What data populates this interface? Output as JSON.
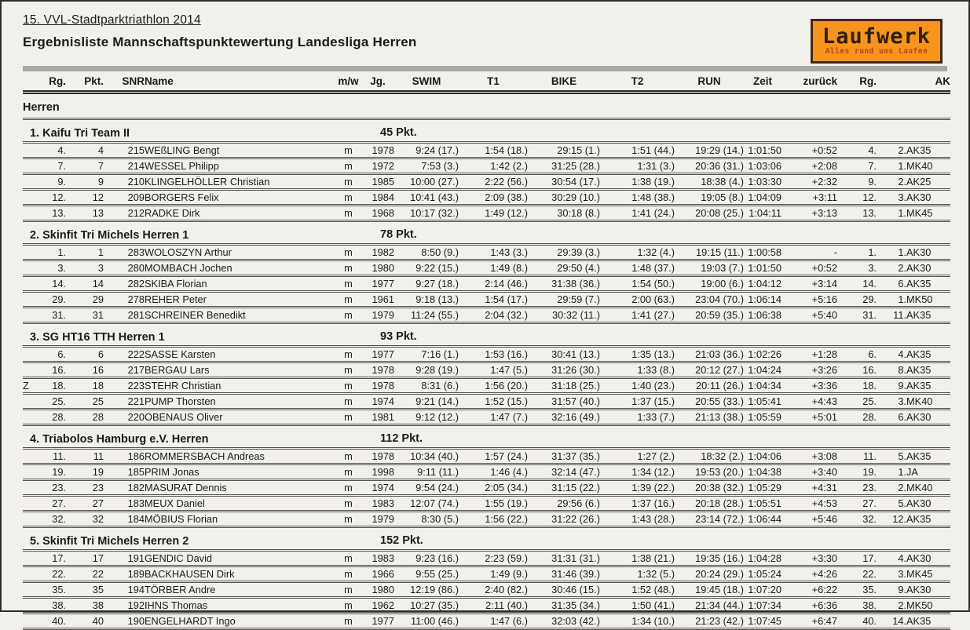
{
  "page": {
    "title": "15. VVL-Stadtparktriathlon 2014",
    "subtitle": "Ergebnisliste Mannschaftspunktewertung Landesliga Herren",
    "section": "Herren"
  },
  "logo": {
    "name": "Laufwerk",
    "tagline": "Alles rund ums Laufen",
    "bg_color": "#f7941e",
    "text_color": "#32200a",
    "tagline_color": "#bf4012"
  },
  "columns": [
    "Rg.",
    "Pkt.",
    "SNR",
    "Name",
    "m/w",
    "Jg.",
    "SWIM",
    "T1",
    "BIKE",
    "T2",
    "RUN",
    "Zeit",
    "zurück",
    "Rg.",
    "AK"
  ],
  "teams": [
    {
      "name": "1. Kaifu Tri Team II",
      "points": "45 Pkt.",
      "rows": [
        {
          "flag": "",
          "rg": "4.",
          "pkt": "4",
          "snr": "215",
          "name": "WEßLING Bengt",
          "mw": "m",
          "jg": "1978",
          "swim": "9:24 (17.)",
          "t1": "1:54 (18.)",
          "bike": "29:15 (1.)",
          "t2": "1:51 (44.)",
          "run": "19:29 (14.)",
          "zeit": "1:01:50",
          "zurueck": "+0:52",
          "rg2": "4.",
          "ak_rg": "2.",
          "ak": "AK35"
        },
        {
          "flag": "",
          "rg": "7.",
          "pkt": "7",
          "snr": "214",
          "name": "WESSEL Philipp",
          "mw": "m",
          "jg": "1972",
          "swim": "7:53 (3.)",
          "t1": "1:42 (2.)",
          "bike": "31:25 (28.)",
          "t2": "1:31 (3.)",
          "run": "20:36 (31.)",
          "zeit": "1:03:06",
          "zurueck": "+2:08",
          "rg2": "7.",
          "ak_rg": "1.",
          "ak": "MK40"
        },
        {
          "flag": "",
          "rg": "9.",
          "pkt": "9",
          "snr": "210",
          "name": "KLINGELHÖLLER Christian",
          "mw": "m",
          "jg": "1985",
          "swim": "10:00 (27.)",
          "t1": "2:22 (56.)",
          "bike": "30:54 (17.)",
          "t2": "1:38 (19.)",
          "run": "18:38 (4.)",
          "zeit": "1:03:30",
          "zurueck": "+2:32",
          "rg2": "9.",
          "ak_rg": "2.",
          "ak": "AK25"
        },
        {
          "flag": "",
          "rg": "12.",
          "pkt": "12",
          "snr": "209",
          "name": "BORGERS Felix",
          "mw": "m",
          "jg": "1984",
          "swim": "10:41 (43.)",
          "t1": "2:09 (38.)",
          "bike": "30:29 (10.)",
          "t2": "1:48 (38.)",
          "run": "19:05 (8.)",
          "zeit": "1:04:09",
          "zurueck": "+3:11",
          "rg2": "12.",
          "ak_rg": "3.",
          "ak": "AK30"
        },
        {
          "flag": "",
          "rg": "13.",
          "pkt": "13",
          "snr": "212",
          "name": "RADKE Dirk",
          "mw": "m",
          "jg": "1968",
          "swim": "10:17 (32.)",
          "t1": "1:49 (12.)",
          "bike": "30:18 (8.)",
          "t2": "1:41 (24.)",
          "run": "20:08 (25.)",
          "zeit": "1:04:11",
          "zurueck": "+3:13",
          "rg2": "13.",
          "ak_rg": "1.",
          "ak": "MK45"
        }
      ]
    },
    {
      "name": "2. Skinfit Tri Michels Herren 1",
      "points": "78 Pkt.",
      "rows": [
        {
          "flag": "",
          "rg": "1.",
          "pkt": "1",
          "snr": "283",
          "name": "WOLOSZYN Arthur",
          "mw": "m",
          "jg": "1982",
          "swim": "8:50 (9.)",
          "t1": "1:43 (3.)",
          "bike": "29:39 (3.)",
          "t2": "1:32 (4.)",
          "run": "19:15 (11.)",
          "zeit": "1:00:58",
          "zurueck": "-",
          "rg2": "1.",
          "ak_rg": "1.",
          "ak": "AK30"
        },
        {
          "flag": "",
          "rg": "3.",
          "pkt": "3",
          "snr": "280",
          "name": "MOMBACH Jochen",
          "mw": "m",
          "jg": "1980",
          "swim": "9:22 (15.)",
          "t1": "1:49 (8.)",
          "bike": "29:50 (4.)",
          "t2": "1:48 (37.)",
          "run": "19:03 (7.)",
          "zeit": "1:01:50",
          "zurueck": "+0:52",
          "rg2": "3.",
          "ak_rg": "2.",
          "ak": "AK30"
        },
        {
          "flag": "",
          "rg": "14.",
          "pkt": "14",
          "snr": "282",
          "name": "SKIBA Florian",
          "mw": "m",
          "jg": "1977",
          "swim": "9:27 (18.)",
          "t1": "2:14 (46.)",
          "bike": "31:38 (36.)",
          "t2": "1:54 (50.)",
          "run": "19:00 (6.)",
          "zeit": "1:04:12",
          "zurueck": "+3:14",
          "rg2": "14.",
          "ak_rg": "6.",
          "ak": "AK35"
        },
        {
          "flag": "",
          "rg": "29.",
          "pkt": "29",
          "snr": "278",
          "name": "REHER Peter",
          "mw": "m",
          "jg": "1961",
          "swim": "9:18 (13.)",
          "t1": "1:54 (17.)",
          "bike": "29:59 (7.)",
          "t2": "2:00 (63.)",
          "run": "23:04 (70.)",
          "zeit": "1:06:14",
          "zurueck": "+5:16",
          "rg2": "29.",
          "ak_rg": "1.",
          "ak": "MK50"
        },
        {
          "flag": "",
          "rg": "31.",
          "pkt": "31",
          "snr": "281",
          "name": "SCHREINER Benedikt",
          "mw": "m",
          "jg": "1979",
          "swim": "11:24 (55.)",
          "t1": "2:04 (32.)",
          "bike": "30:32 (11.)",
          "t2": "1:41 (27.)",
          "run": "20:59 (35.)",
          "zeit": "1:06:38",
          "zurueck": "+5:40",
          "rg2": "31.",
          "ak_rg": "11.",
          "ak": "AK35"
        }
      ]
    },
    {
      "name": "3. SG HT16 TTH Herren 1",
      "points": "93 Pkt.",
      "rows": [
        {
          "flag": "",
          "rg": "6.",
          "pkt": "6",
          "snr": "222",
          "name": "SASSE Karsten",
          "mw": "m",
          "jg": "1977",
          "swim": "7:16 (1.)",
          "t1": "1:53 (16.)",
          "bike": "30:41 (13.)",
          "t2": "1:35 (13.)",
          "run": "21:03 (36.)",
          "zeit": "1:02:26",
          "zurueck": "+1:28",
          "rg2": "6.",
          "ak_rg": "4.",
          "ak": "AK35"
        },
        {
          "flag": "",
          "rg": "16.",
          "pkt": "16",
          "snr": "217",
          "name": "BERGAU Lars",
          "mw": "m",
          "jg": "1978",
          "swim": "9:28 (19.)",
          "t1": "1:47 (5.)",
          "bike": "31:26 (30.)",
          "t2": "1:33 (8.)",
          "run": "20:12 (27.)",
          "zeit": "1:04:24",
          "zurueck": "+3:26",
          "rg2": "16.",
          "ak_rg": "8.",
          "ak": "AK35"
        },
        {
          "flag": "Z",
          "rg": "18.",
          "pkt": "18",
          "snr": "223",
          "name": "STEHR Christian",
          "mw": "m",
          "jg": "1978",
          "swim": "8:31 (6.)",
          "t1": "1:56 (20.)",
          "bike": "31:18 (25.)",
          "t2": "1:40 (23.)",
          "run": "20:11 (26.)",
          "zeit": "1:04:34",
          "zurueck": "+3:36",
          "rg2": "18.",
          "ak_rg": "9.",
          "ak": "AK35"
        },
        {
          "flag": "",
          "rg": "25.",
          "pkt": "25",
          "snr": "221",
          "name": "PUMP Thorsten",
          "mw": "m",
          "jg": "1974",
          "swim": "9:21 (14.)",
          "t1": "1:52 (15.)",
          "bike": "31:57 (40.)",
          "t2": "1:37 (15.)",
          "run": "20:55 (33.)",
          "zeit": "1:05:41",
          "zurueck": "+4:43",
          "rg2": "25.",
          "ak_rg": "3.",
          "ak": "MK40"
        },
        {
          "flag": "",
          "rg": "28.",
          "pkt": "28",
          "snr": "220",
          "name": "OBENAUS Oliver",
          "mw": "m",
          "jg": "1981",
          "swim": "9:12 (12.)",
          "t1": "1:47 (7.)",
          "bike": "32:16 (49.)",
          "t2": "1:33 (7.)",
          "run": "21:13 (38.)",
          "zeit": "1:05:59",
          "zurueck": "+5:01",
          "rg2": "28.",
          "ak_rg": "6.",
          "ak": "AK30"
        }
      ]
    },
    {
      "name": "4. Triabolos Hamburg e.V. Herren",
      "points": "112 Pkt.",
      "rows": [
        {
          "flag": "",
          "rg": "11.",
          "pkt": "11",
          "snr": "186",
          "name": "ROMMERSBACH Andreas",
          "mw": "m",
          "jg": "1978",
          "swim": "10:34 (40.)",
          "t1": "1:57 (24.)",
          "bike": "31:37 (35.)",
          "t2": "1:27 (2.)",
          "run": "18:32 (2.)",
          "zeit": "1:04:06",
          "zurueck": "+3:08",
          "rg2": "11.",
          "ak_rg": "5.",
          "ak": "AK35"
        },
        {
          "flag": "",
          "rg": "19.",
          "pkt": "19",
          "snr": "185",
          "name": "PRIM Jonas",
          "mw": "m",
          "jg": "1998",
          "swim": "9:11 (11.)",
          "t1": "1:46 (4.)",
          "bike": "32:14 (47.)",
          "t2": "1:34 (12.)",
          "run": "19:53 (20.)",
          "zeit": "1:04:38",
          "zurueck": "+3:40",
          "rg2": "19.",
          "ak_rg": "1.",
          "ak": "JA"
        },
        {
          "flag": "",
          "rg": "23.",
          "pkt": "23",
          "snr": "182",
          "name": "MASURAT Dennis",
          "mw": "m",
          "jg": "1974",
          "swim": "9:54 (24.)",
          "t1": "2:05 (34.)",
          "bike": "31:15 (22.)",
          "t2": "1:39 (22.)",
          "run": "20:38 (32.)",
          "zeit": "1:05:29",
          "zurueck": "+4:31",
          "rg2": "23.",
          "ak_rg": "2.",
          "ak": "MK40"
        },
        {
          "flag": "",
          "rg": "27.",
          "pkt": "27",
          "snr": "183",
          "name": "MEUX Daniel",
          "mw": "m",
          "jg": "1983",
          "swim": "12:07 (74.)",
          "t1": "1:55 (19.)",
          "bike": "29:56 (6.)",
          "t2": "1:37 (16.)",
          "run": "20:18 (28.)",
          "zeit": "1:05:51",
          "zurueck": "+4:53",
          "rg2": "27.",
          "ak_rg": "5.",
          "ak": "AK30"
        },
        {
          "flag": "",
          "rg": "32.",
          "pkt": "32",
          "snr": "184",
          "name": "MÖBIUS Florian",
          "mw": "m",
          "jg": "1979",
          "swim": "8:30 (5.)",
          "t1": "1:56 (22.)",
          "bike": "31:22 (26.)",
          "t2": "1:43 (28.)",
          "run": "23:14 (72.)",
          "zeit": "1:06:44",
          "zurueck": "+5:46",
          "rg2": "32.",
          "ak_rg": "12.",
          "ak": "AK35"
        }
      ]
    },
    {
      "name": "5. Skinfit Tri Michels Herren 2",
      "points": "152 Pkt.",
      "rows": [
        {
          "flag": "",
          "rg": "17.",
          "pkt": "17",
          "snr": "191",
          "name": "GENDIC David",
          "mw": "m",
          "jg": "1983",
          "swim": "9:23 (16.)",
          "t1": "2:23 (59.)",
          "bike": "31:31 (31.)",
          "t2": "1:38 (21.)",
          "run": "19:35 (16.)",
          "zeit": "1:04:28",
          "zurueck": "+3:30",
          "rg2": "17.",
          "ak_rg": "4.",
          "ak": "AK30"
        },
        {
          "flag": "",
          "rg": "22.",
          "pkt": "22",
          "snr": "189",
          "name": "BACKHAUSEN Dirk",
          "mw": "m",
          "jg": "1966",
          "swim": "9:55 (25.)",
          "t1": "1:49 (9.)",
          "bike": "31:46 (39.)",
          "t2": "1:32 (5.)",
          "run": "20:24 (29.)",
          "zeit": "1:05:24",
          "zurueck": "+4:26",
          "rg2": "22.",
          "ak_rg": "3.",
          "ak": "MK45"
        },
        {
          "flag": "",
          "rg": "35.",
          "pkt": "35",
          "snr": "194",
          "name": "TÖRBER Andre",
          "mw": "m",
          "jg": "1980",
          "swim": "12:19 (86.)",
          "t1": "2:40 (82.)",
          "bike": "30:46 (15.)",
          "t2": "1:52 (48.)",
          "run": "19:45 (18.)",
          "zeit": "1:07:20",
          "zurueck": "+6:22",
          "rg2": "35.",
          "ak_rg": "9.",
          "ak": "AK30"
        },
        {
          "flag": "",
          "rg": "38.",
          "pkt": "38",
          "snr": "192",
          "name": "IHNS Thomas",
          "mw": "m",
          "jg": "1962",
          "swim": "10:27 (35.)",
          "t1": "2:11 (40.)",
          "bike": "31:35 (34.)",
          "t2": "1:50 (41.)",
          "run": "21:34 (44.)",
          "zeit": "1:07:34",
          "zurueck": "+6:36",
          "rg2": "38.",
          "ak_rg": "2.",
          "ak": "MK50"
        },
        {
          "flag": "",
          "rg": "40.",
          "pkt": "40",
          "snr": "190",
          "name": "ENGELHARDT Ingo",
          "mw": "m",
          "jg": "1977",
          "swim": "11:00 (46.)",
          "t1": "1:47 (6.)",
          "bike": "32:03 (42.)",
          "t2": "1:34 (10.)",
          "run": "21:23 (42.)",
          "zeit": "1:07:45",
          "zurueck": "+6:47",
          "rg2": "40.",
          "ak_rg": "14.",
          "ak": "AK35"
        }
      ]
    }
  ]
}
